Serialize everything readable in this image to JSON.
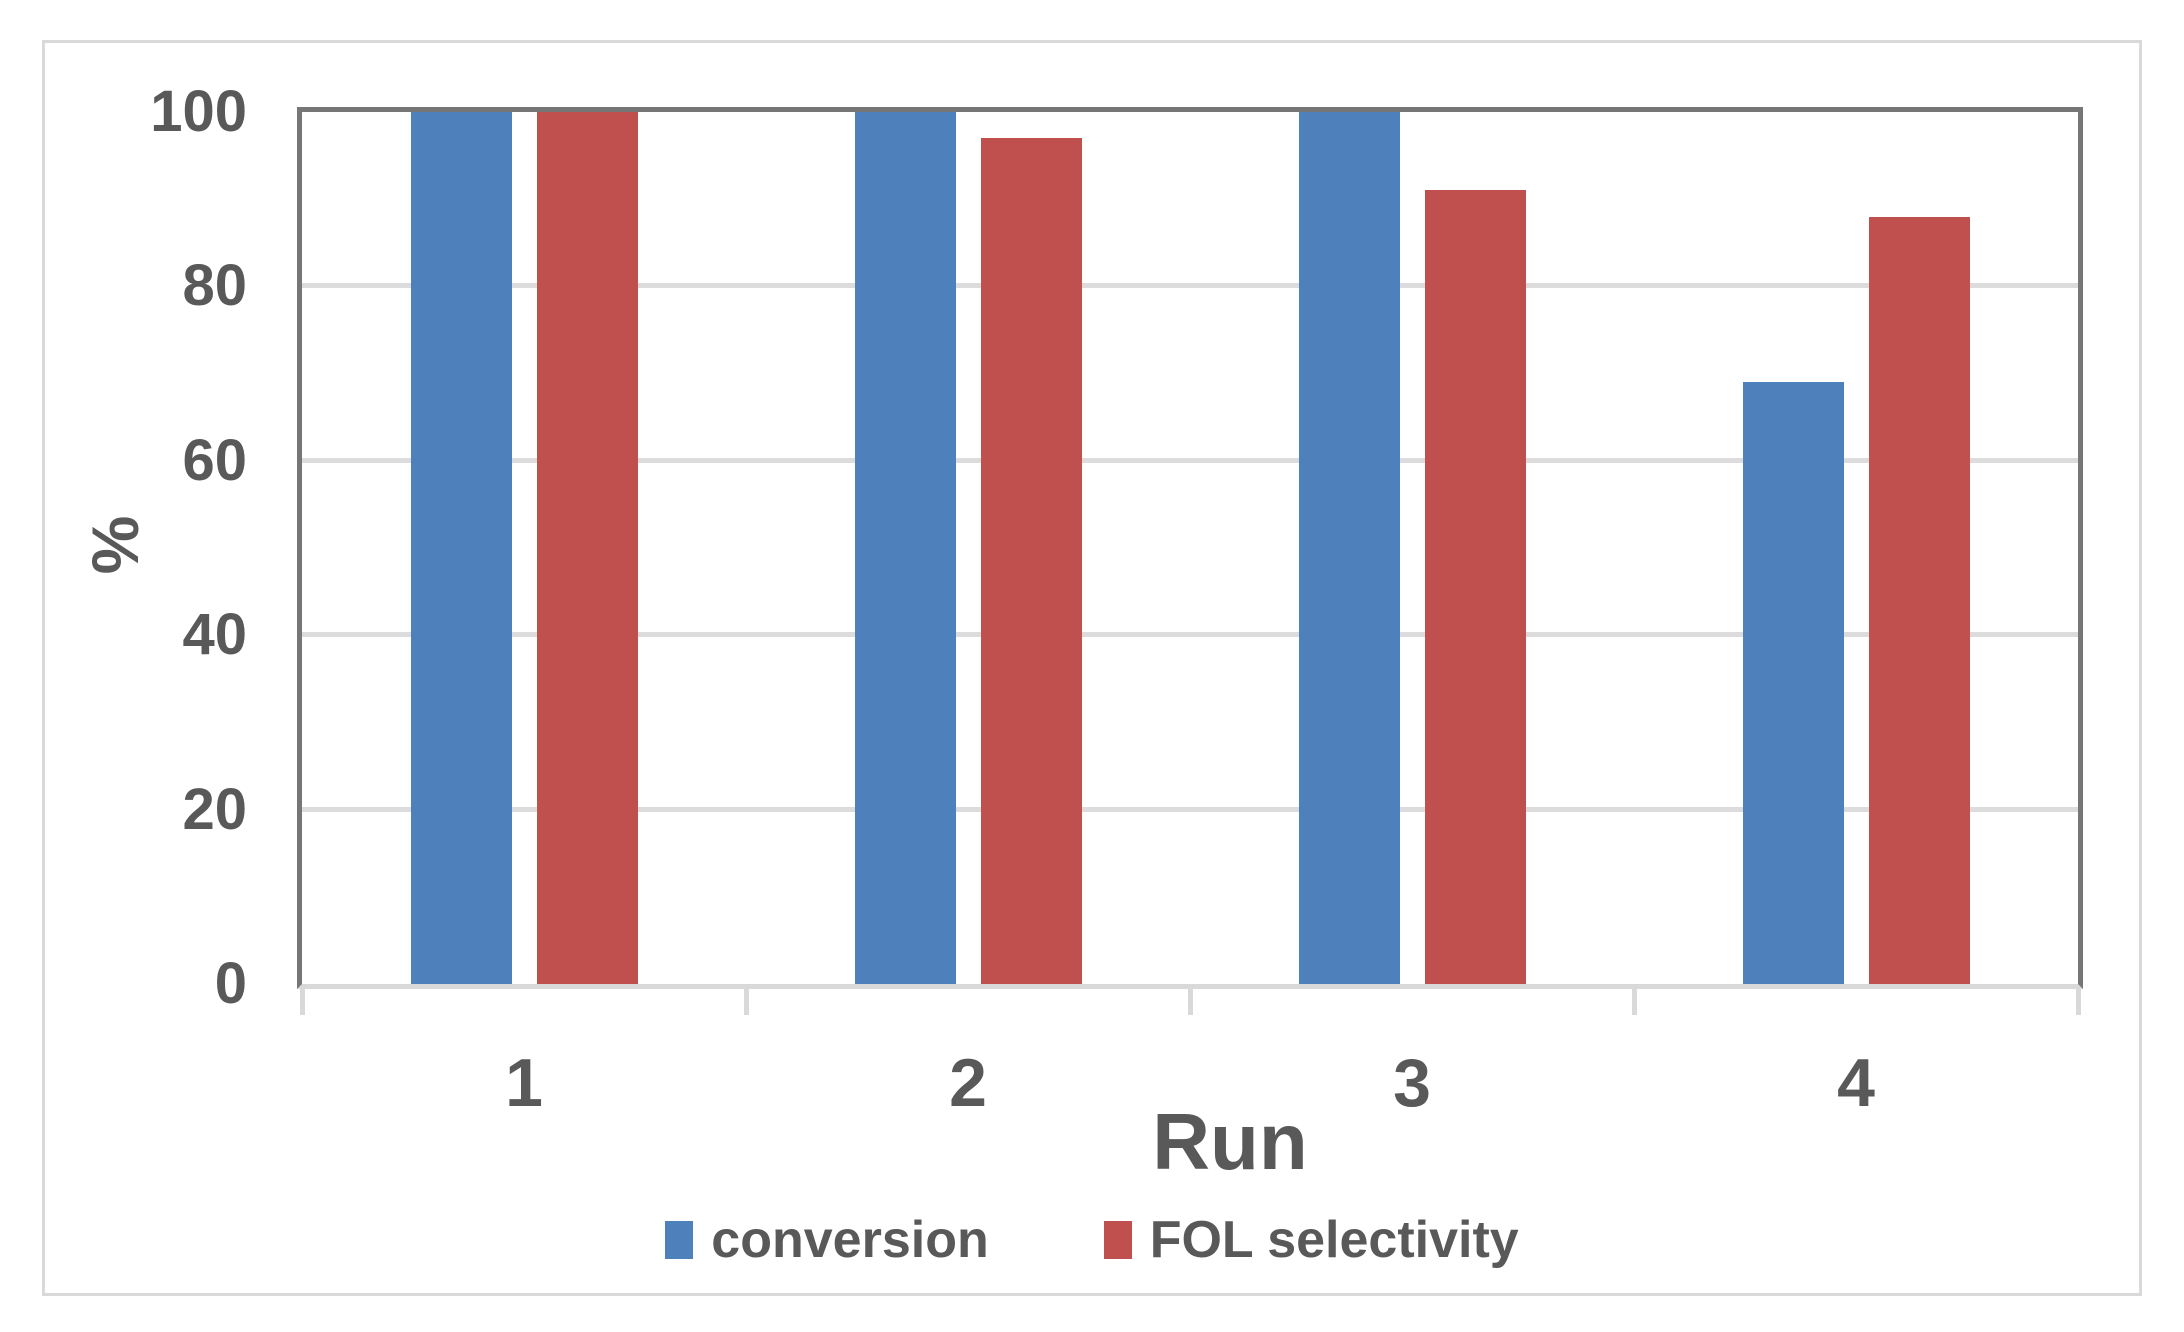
{
  "chart_data": {
    "type": "bar",
    "categories": [
      "1",
      "2",
      "3",
      "4"
    ],
    "series": [
      {
        "name": "conversion",
        "color": "#4E81BC",
        "values": [
          100,
          100,
          100,
          69
        ]
      },
      {
        "name": "FOL selectivity",
        "color": "#C0504D",
        "values": [
          100,
          97,
          91,
          88
        ]
      }
    ],
    "title": "",
    "xlabel": "Run",
    "ylabel": "%",
    "ylim": [
      0,
      100
    ],
    "yticks": [
      0,
      20,
      40,
      60,
      80,
      100
    ],
    "grid": true,
    "legend_position": "bottom"
  },
  "colors": {
    "text": "#595959",
    "axis_dark": "#767676",
    "grid_light": "#dcdcdc",
    "baseline": "#d9d9d9",
    "figure_border": "#d9d9d9",
    "background": "#ffffff"
  }
}
